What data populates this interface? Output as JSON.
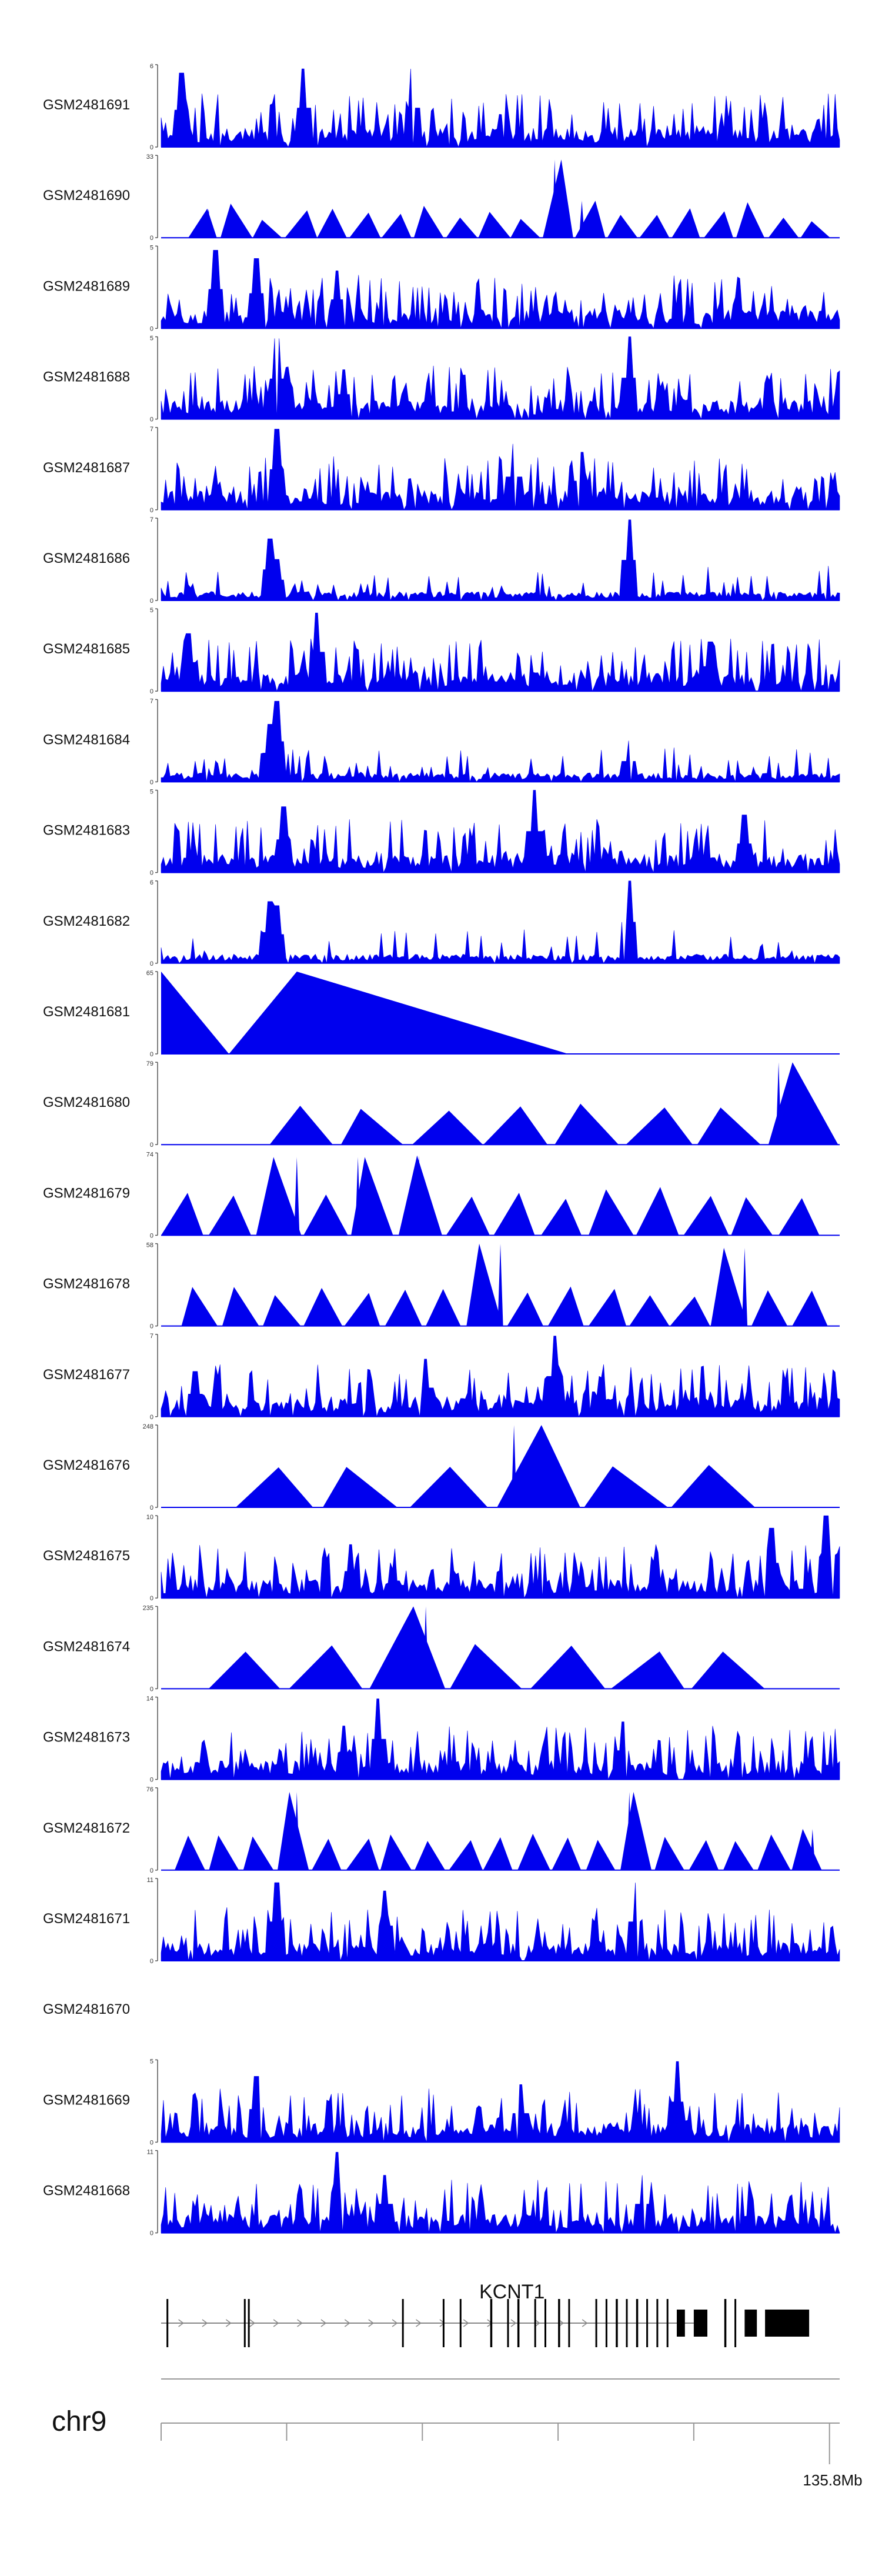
{
  "chart_data": {
    "type": "area",
    "title": "",
    "chromosome": "chr9",
    "gene_label": "KCNT1",
    "axis_end_label": "135.8Mb",
    "fill_color": "#0000ee",
    "tracks": [
      {
        "name": "GSM2481691",
        "ymax": "6",
        "ymin": "0",
        "style": "dense",
        "seed": 11,
        "peaks": [
          [
            0.03,
            0.9
          ],
          [
            0.21,
            0.95
          ],
          [
            0.37,
            0.95
          ]
        ]
      },
      {
        "name": "GSM2481690",
        "ymax": "33",
        "ymin": "0",
        "style": "tri",
        "seed": 7,
        "range": [
          0.04,
          0.99
        ],
        "n": 20,
        "minh": 0.2,
        "maxh": 0.45,
        "peaks": [
          [
            0.58,
            0.95
          ],
          [
            0.62,
            0.45
          ],
          [
            0.07,
            0.35
          ]
        ]
      },
      {
        "name": "GSM2481689",
        "ymax": "5",
        "ymin": "0",
        "style": "dense",
        "seed": 23,
        "peaks": [
          [
            0.08,
            0.95
          ],
          [
            0.14,
            0.85
          ],
          [
            0.26,
            0.7
          ]
        ]
      },
      {
        "name": "GSM2481688",
        "ymax": "5",
        "ymin": "0",
        "style": "dense",
        "seed": 31,
        "peaks": [
          [
            0.17,
            0.98
          ],
          [
            0.69,
            1.0
          ],
          [
            0.27,
            0.6
          ]
        ]
      },
      {
        "name": "GSM2481687",
        "ymax": "7",
        "ymin": "0",
        "style": "dense",
        "seed": 41,
        "peaks": [
          [
            0.17,
            0.98
          ],
          [
            0.52,
            0.8
          ],
          [
            0.62,
            0.7
          ]
        ]
      },
      {
        "name": "GSM2481686",
        "ymax": "7",
        "ymin": "0",
        "style": "sparse",
        "seed": 53,
        "peaks": [
          [
            0.16,
            0.75
          ],
          [
            0.69,
            0.98
          ],
          [
            0.17,
            0.5
          ]
        ]
      },
      {
        "name": "GSM2481685",
        "ymax": "5",
        "ymin": "0",
        "style": "dense",
        "seed": 61,
        "peaks": [
          [
            0.23,
            0.95
          ],
          [
            0.04,
            0.7
          ],
          [
            0.81,
            0.6
          ]
        ]
      },
      {
        "name": "GSM2481684",
        "ymax": "7",
        "ymin": "0",
        "style": "sparse",
        "seed": 71,
        "peaks": [
          [
            0.17,
            0.98
          ],
          [
            0.16,
            0.7
          ],
          [
            0.69,
            0.5
          ]
        ]
      },
      {
        "name": "GSM2481683",
        "ymax": "5",
        "ymin": "0",
        "style": "dense",
        "seed": 83,
        "peaks": [
          [
            0.55,
            1.0
          ],
          [
            0.18,
            0.8
          ],
          [
            0.86,
            0.7
          ]
        ]
      },
      {
        "name": "GSM2481682",
        "ymax": "6",
        "ymin": "0",
        "style": "sparse",
        "seed": 97,
        "peaks": [
          [
            0.69,
            1.0
          ],
          [
            0.16,
            0.75
          ],
          [
            0.17,
            0.7
          ]
        ]
      },
      {
        "name": "GSM2481681",
        "ymax": "65",
        "ymin": "0",
        "style": "big",
        "tris": [
          [
            0.0,
            0.1,
            1.0
          ],
          [
            0.1,
            0.6,
            1.0
          ]
        ]
      },
      {
        "name": "GSM2481680",
        "ymax": "79",
        "ymin": "0",
        "style": "tri",
        "seed": 13,
        "range": [
          0.16,
          1.0
        ],
        "n": 8,
        "minh": 0.4,
        "maxh": 0.5,
        "peaks": [
          [
            0.91,
            1.0
          ]
        ]
      },
      {
        "name": "GSM2481679",
        "ymax": "74",
        "ymin": "0",
        "style": "tri",
        "seed": 17,
        "range": [
          0.0,
          0.98
        ],
        "n": 14,
        "minh": 0.4,
        "maxh": 0.65,
        "peaks": [
          [
            0.2,
            0.95
          ],
          [
            0.29,
            0.95
          ],
          [
            0.38,
            0.97
          ]
        ]
      },
      {
        "name": "GSM2481678",
        "ymax": "58",
        "ymin": "0",
        "style": "tri",
        "seed": 19,
        "range": [
          0.03,
          0.99
        ],
        "n": 16,
        "minh": 0.35,
        "maxh": 0.5,
        "peaks": [
          [
            0.5,
            1.0
          ],
          [
            0.86,
            0.95
          ]
        ]
      },
      {
        "name": "GSM2481677",
        "ymax": "7",
        "ymin": "0",
        "style": "dense",
        "seed": 29,
        "peaks": [
          [
            0.58,
            0.98
          ],
          [
            0.39,
            0.7
          ],
          [
            0.05,
            0.55
          ]
        ]
      },
      {
        "name": "GSM2481676",
        "ymax": "248",
        "ymin": "0",
        "style": "tri",
        "seed": 37,
        "range": [
          0.11,
          0.88
        ],
        "n": 6,
        "minh": 0.48,
        "maxh": 0.52,
        "peaks": [
          [
            0.52,
            1.0
          ]
        ]
      },
      {
        "name": "GSM2481675",
        "ymax": "10",
        "ymin": "0",
        "style": "dense",
        "seed": 43,
        "peaks": [
          [
            0.98,
            1.0
          ],
          [
            0.9,
            0.85
          ],
          [
            0.28,
            0.65
          ]
        ]
      },
      {
        "name": "GSM2481674",
        "ymax": "235",
        "ymin": "0",
        "style": "tri",
        "seed": 47,
        "range": [
          0.07,
          0.9
        ],
        "n": 7,
        "minh": 0.45,
        "maxh": 0.55,
        "peaks": [
          [
            0.39,
            1.0
          ]
        ]
      },
      {
        "name": "GSM2481673",
        "ymax": "14",
        "ymin": "0",
        "style": "dense",
        "seed": 59,
        "peaks": [
          [
            0.32,
            0.98
          ],
          [
            0.68,
            0.7
          ],
          [
            0.27,
            0.65
          ]
        ]
      },
      {
        "name": "GSM2481672",
        "ymax": "76",
        "ymin": "0",
        "style": "tri",
        "seed": 67,
        "range": [
          0.02,
          0.98
        ],
        "n": 19,
        "minh": 0.35,
        "maxh": 0.45,
        "peaks": [
          [
            0.2,
            0.95
          ],
          [
            0.69,
            0.95
          ],
          [
            0.96,
            0.5
          ]
        ]
      },
      {
        "name": "GSM2481671",
        "ymax": "11",
        "ymin": "0",
        "style": "dense",
        "seed": 73,
        "peaks": [
          [
            0.17,
            0.95
          ],
          [
            0.7,
            0.95
          ],
          [
            0.33,
            0.85
          ]
        ]
      },
      {
        "name": "GSM2481670",
        "ymax": "",
        "ymin": "",
        "style": "empty"
      },
      {
        "name": "GSM2481669",
        "ymax": "5",
        "ymin": "0",
        "style": "dense",
        "seed": 79,
        "peaks": [
          [
            0.76,
            0.98
          ],
          [
            0.14,
            0.8
          ],
          [
            0.53,
            0.7
          ]
        ]
      },
      {
        "name": "GSM2481668",
        "ymax": "11",
        "ymin": "0",
        "style": "dense",
        "seed": 89,
        "peaks": [
          [
            0.26,
            0.98
          ],
          [
            0.33,
            0.7
          ],
          [
            0.71,
            0.7
          ]
        ]
      }
    ],
    "gene_model": {
      "intron_range": [
        0.0,
        0.79
      ],
      "exons": [
        [
          0.008,
          0.002,
          "small"
        ],
        [
          0.122,
          0.002,
          "small"
        ],
        [
          0.128,
          0.002,
          "small"
        ],
        [
          0.355,
          0.002,
          "small"
        ],
        [
          0.415,
          0.002,
          "small"
        ],
        [
          0.44,
          0.002,
          "small"
        ],
        [
          0.485,
          0.003,
          "small"
        ],
        [
          0.51,
          0.002,
          "small"
        ],
        [
          0.525,
          0.003,
          "small"
        ],
        [
          0.55,
          0.002,
          "small"
        ],
        [
          0.565,
          0.002,
          "small"
        ],
        [
          0.585,
          0.003,
          "small"
        ],
        [
          0.6,
          0.002,
          "small"
        ],
        [
          0.64,
          0.002,
          "small"
        ],
        [
          0.655,
          0.002,
          "small"
        ],
        [
          0.67,
          0.003,
          "small"
        ],
        [
          0.685,
          0.002,
          "small"
        ],
        [
          0.7,
          0.003,
          "small"
        ],
        [
          0.715,
          0.002,
          "small"
        ],
        [
          0.73,
          0.002,
          "small"
        ],
        [
          0.745,
          0.002,
          "small"
        ],
        [
          0.76,
          0.012,
          "big"
        ],
        [
          0.785,
          0.02,
          "big"
        ],
        [
          0.83,
          0.003,
          "small"
        ],
        [
          0.845,
          0.002,
          "small"
        ],
        [
          0.86,
          0.018,
          "big"
        ],
        [
          0.89,
          0.065,
          "big"
        ]
      ]
    },
    "axis_ticks": [
      0.0,
      0.185,
      0.385,
      0.585,
      0.785,
      0.985
    ]
  }
}
